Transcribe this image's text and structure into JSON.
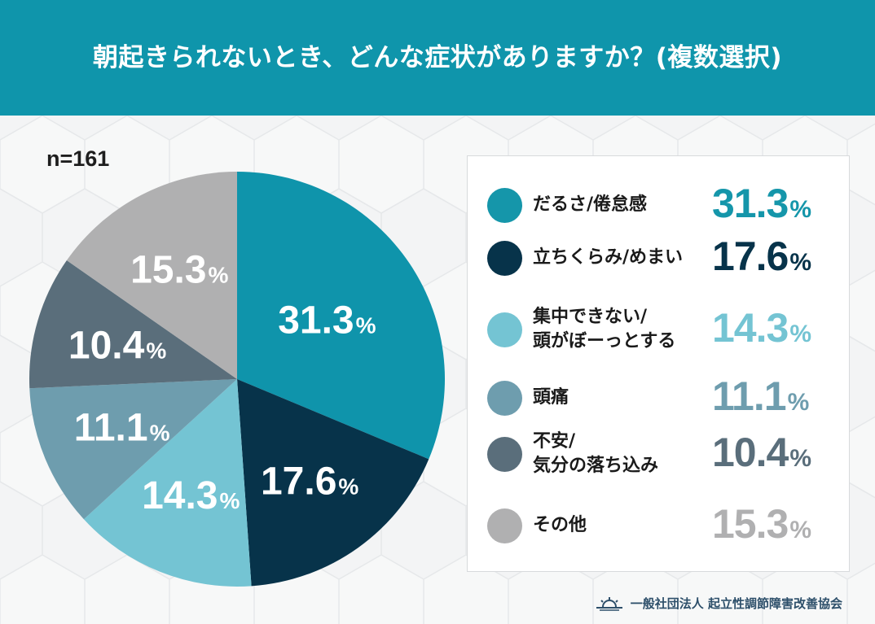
{
  "header": {
    "title": "朝起きられないとき、どんな症状がありますか？(複数選択)"
  },
  "sample_size": "n=161",
  "footer": {
    "organization": "一般社団法人 起立性調節障害改善協会",
    "logo_icon": "sunrise-icon"
  },
  "chart_data": {
    "type": "pie",
    "title": "朝起きられないとき、どんな症状がありますか？(複数選択)",
    "start": "top",
    "direction": "clockwise",
    "unit": "%",
    "slices": [
      {
        "label": "だるさ/倦怠感",
        "value": 31.3,
        "display": "31.3",
        "color": "#0f94ab",
        "legend_color": "#1596aa",
        "legend_lines": [
          "だるさ/倦怠感"
        ]
      },
      {
        "label": "立ちくらみ/めまい",
        "value": 17.6,
        "display": "17.6",
        "color": "#07334a",
        "legend_color": "#07334a",
        "legend_lines": [
          "立ちくらみ/めまい"
        ]
      },
      {
        "label": "集中できない/頭がぼーっとする",
        "value": 14.3,
        "display": "14.3",
        "color": "#74c4d3",
        "legend_color": "#74c4d3",
        "legend_lines": [
          "集中できない/",
          "頭がぼーっとする"
        ]
      },
      {
        "label": "頭痛",
        "value": 11.1,
        "display": "11.1",
        "color": "#6e9dae",
        "legend_color": "#6e9dae",
        "legend_lines": [
          "頭痛"
        ]
      },
      {
        "label": "不安/気分の落ち込み",
        "value": 10.4,
        "display": "10.4",
        "color": "#5a6e7b",
        "legend_color": "#5a6e7b",
        "legend_lines": [
          "不安/",
          "気分の落ち込み"
        ]
      },
      {
        "label": "その他",
        "value": 15.3,
        "display": "15.3",
        "color": "#b0b0b1",
        "legend_color": "#b0b0b1",
        "legend_lines": [
          "その他"
        ]
      }
    ]
  }
}
